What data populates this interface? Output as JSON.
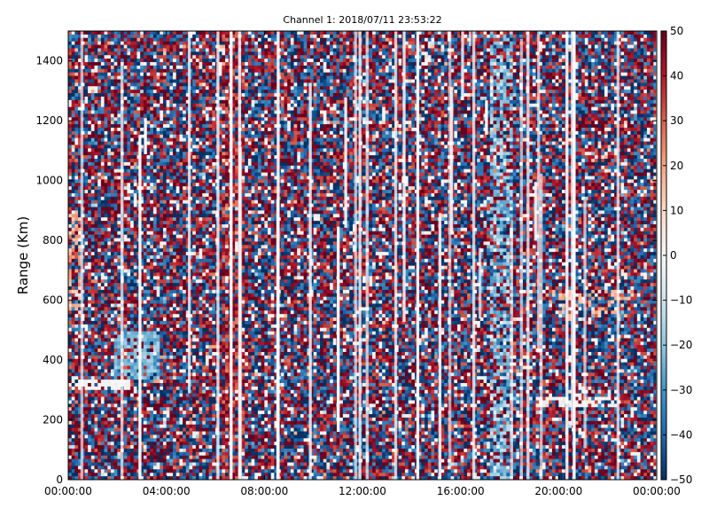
{
  "chart_data": {
    "type": "heatmap",
    "title": "Channel 1: 2018/07/11 23:53:22",
    "xlabel": "",
    "ylabel": "Range (Km)",
    "x_ticks": [
      "00:00:00",
      "04:00:00",
      "08:00:00",
      "12:00:00",
      "16:00:00",
      "20:00:00",
      "00:00:00"
    ],
    "x_range_hours": [
      0,
      24
    ],
    "y_ticks": [
      0,
      200,
      400,
      600,
      800,
      1000,
      1200,
      1400
    ],
    "ylim": [
      0,
      1500
    ],
    "colorbar": {
      "ticks": [
        50,
        40,
        30,
        20,
        10,
        0,
        -10,
        -20,
        -30,
        -40,
        -50
      ],
      "range": [
        -50,
        50
      ],
      "colormap": "RdBu_r",
      "colors": [
        "#053061",
        "#2166ac",
        "#4393c3",
        "#92c5de",
        "#d1e5f0",
        "#f7f7f7",
        "#fddbc7",
        "#f4a582",
        "#d6604d",
        "#b2182b",
        "#67001f"
      ]
    },
    "grid": false,
    "legend": "none"
  }
}
